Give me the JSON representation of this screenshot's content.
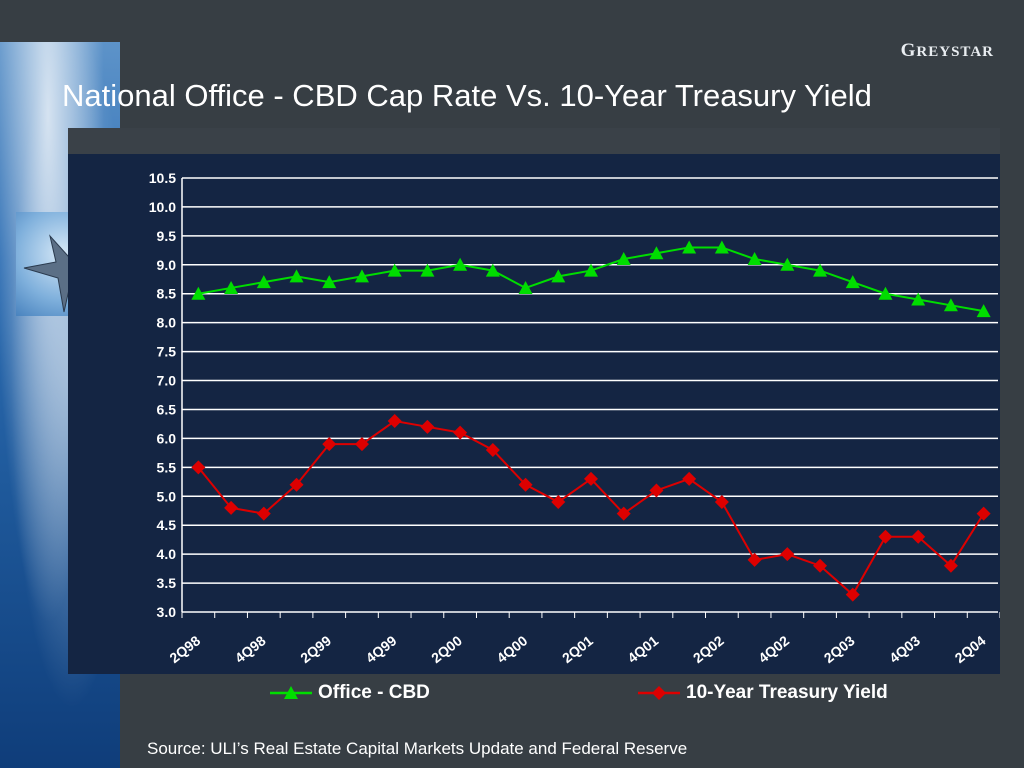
{
  "slide": {
    "title": "National Office - CBD Cap Rate Vs. 10-Year Treasury Yield",
    "brand": {
      "initial": "G",
      "rest": "REYSTAR"
    },
    "source": "Source: ULI’s Real Estate Capital Markets Update and Federal Reserve"
  },
  "colors": {
    "background": "#373e44",
    "plot_background": "#142543",
    "gridline": "#ffffff",
    "office_series": "#00dd00",
    "treasury_series": "#dd0000"
  },
  "chart_data": {
    "type": "line",
    "title": "",
    "xlabel": "",
    "ylabel": "",
    "ylim": [
      3.0,
      10.5
    ],
    "ytick_step": 0.5,
    "grid": "horizontal",
    "legend_position": "bottom",
    "categories": [
      "2Q98",
      "3Q98",
      "4Q98",
      "1Q99",
      "2Q99",
      "3Q99",
      "4Q99",
      "1Q00",
      "2Q00",
      "3Q00",
      "4Q00",
      "1Q01",
      "2Q01",
      "3Q01",
      "4Q01",
      "1Q02",
      "2Q02",
      "3Q02",
      "4Q02",
      "1Q03",
      "2Q03",
      "3Q03",
      "4Q03",
      "1Q04",
      "2Q04"
    ],
    "labeled_categories": [
      "2Q98",
      "4Q98",
      "2Q99",
      "4Q99",
      "2Q00",
      "4Q00",
      "2Q01",
      "4Q01",
      "2Q02",
      "4Q02",
      "2Q03",
      "4Q03",
      "2Q04"
    ],
    "series": [
      {
        "name": "Office - CBD",
        "marker": "triangle",
        "color": "#00dd00",
        "values": [
          8.5,
          8.6,
          8.7,
          8.8,
          8.7,
          8.8,
          8.9,
          8.9,
          9.0,
          8.9,
          8.6,
          8.8,
          8.9,
          9.1,
          9.2,
          9.3,
          9.3,
          9.1,
          9.0,
          8.9,
          8.7,
          8.5,
          8.4,
          8.3,
          8.2
        ]
      },
      {
        "name": "10-Year Treasury Yield",
        "marker": "diamond",
        "color": "#dd0000",
        "values": [
          5.5,
          4.8,
          4.7,
          5.2,
          5.9,
          5.9,
          6.3,
          6.2,
          6.1,
          5.8,
          5.2,
          4.9,
          5.3,
          4.7,
          5.1,
          5.3,
          4.9,
          3.9,
          4.0,
          3.8,
          3.3,
          4.3,
          4.3,
          3.8,
          4.7
        ]
      }
    ]
  }
}
